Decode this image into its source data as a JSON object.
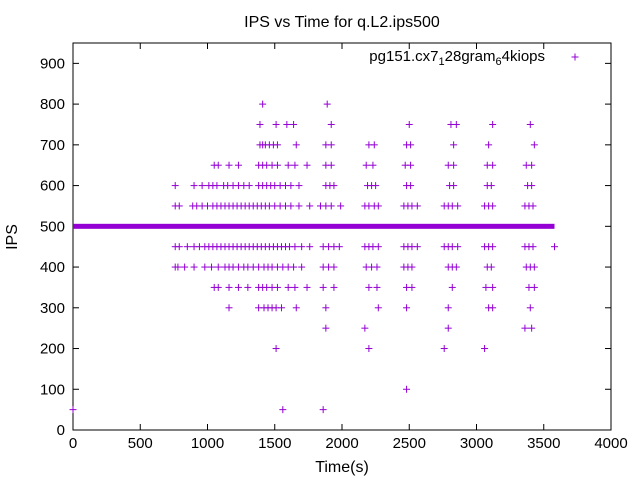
{
  "chart_data": {
    "type": "scatter",
    "title": "IPS vs Time for q.L2.ips500",
    "xlabel": "Time(s)",
    "ylabel": "IPS",
    "xlim": [
      0,
      4000
    ],
    "ylim": [
      0,
      950
    ],
    "xticks": [
      0,
      500,
      1000,
      1500,
      2000,
      2500,
      3000,
      3500,
      4000
    ],
    "yticks": [
      0,
      100,
      200,
      300,
      400,
      500,
      600,
      700,
      800,
      900
    ],
    "grid": false,
    "legend_position": "top-right",
    "marker": "+",
    "color": "#9400d3",
    "series": [
      {
        "name": "pg151.cx7",
        "name_sub": "1",
        "name_mid": "28gram",
        "name_sub2": "6",
        "name_tail": "4kiops",
        "baseline": {
          "y": 500,
          "x_start": 0,
          "x_end": 3580
        },
        "points": [
          [
            0,
            50
          ],
          [
            1560,
            50
          ],
          [
            1860,
            50
          ],
          [
            2480,
            100
          ],
          [
            1510,
            200
          ],
          [
            2200,
            200
          ],
          [
            2760,
            200
          ],
          [
            3060,
            200
          ],
          [
            1880,
            250
          ],
          [
            2170,
            250
          ],
          [
            2790,
            250
          ],
          [
            3360,
            250
          ],
          [
            3410,
            250
          ],
          [
            1160,
            300
          ],
          [
            1380,
            300
          ],
          [
            1420,
            300
          ],
          [
            1450,
            300
          ],
          [
            1480,
            300
          ],
          [
            1510,
            300
          ],
          [
            1550,
            300
          ],
          [
            1660,
            300
          ],
          [
            1880,
            300
          ],
          [
            2270,
            300
          ],
          [
            2480,
            300
          ],
          [
            2790,
            300
          ],
          [
            3090,
            300
          ],
          [
            3120,
            300
          ],
          [
            3400,
            300
          ],
          [
            1050,
            350
          ],
          [
            1080,
            350
          ],
          [
            1160,
            350
          ],
          [
            1230,
            350
          ],
          [
            1300,
            350
          ],
          [
            1380,
            350
          ],
          [
            1410,
            350
          ],
          [
            1440,
            350
          ],
          [
            1480,
            350
          ],
          [
            1520,
            350
          ],
          [
            1600,
            350
          ],
          [
            1650,
            350
          ],
          [
            1740,
            350
          ],
          [
            1860,
            350
          ],
          [
            1940,
            350
          ],
          [
            2200,
            350
          ],
          [
            2260,
            350
          ],
          [
            2480,
            350
          ],
          [
            2520,
            350
          ],
          [
            2820,
            350
          ],
          [
            3070,
            350
          ],
          [
            3120,
            350
          ],
          [
            3390,
            350
          ],
          [
            3430,
            350
          ],
          [
            760,
            400
          ],
          [
            780,
            400
          ],
          [
            830,
            400
          ],
          [
            900,
            400
          ],
          [
            980,
            400
          ],
          [
            1030,
            400
          ],
          [
            1080,
            400
          ],
          [
            1130,
            400
          ],
          [
            1160,
            400
          ],
          [
            1190,
            400
          ],
          [
            1230,
            400
          ],
          [
            1270,
            400
          ],
          [
            1300,
            400
          ],
          [
            1340,
            400
          ],
          [
            1380,
            400
          ],
          [
            1420,
            400
          ],
          [
            1450,
            400
          ],
          [
            1480,
            400
          ],
          [
            1520,
            400
          ],
          [
            1560,
            400
          ],
          [
            1600,
            400
          ],
          [
            1640,
            400
          ],
          [
            1700,
            400
          ],
          [
            1860,
            400
          ],
          [
            1900,
            400
          ],
          [
            1940,
            400
          ],
          [
            2180,
            400
          ],
          [
            2220,
            400
          ],
          [
            2260,
            400
          ],
          [
            2460,
            400
          ],
          [
            2490,
            400
          ],
          [
            2520,
            400
          ],
          [
            2790,
            400
          ],
          [
            2820,
            400
          ],
          [
            2850,
            400
          ],
          [
            3080,
            400
          ],
          [
            3110,
            400
          ],
          [
            3370,
            400
          ],
          [
            3400,
            400
          ],
          [
            3430,
            400
          ],
          [
            760,
            450
          ],
          [
            790,
            450
          ],
          [
            850,
            450
          ],
          [
            900,
            450
          ],
          [
            940,
            450
          ],
          [
            980,
            450
          ],
          [
            1010,
            450
          ],
          [
            1040,
            450
          ],
          [
            1070,
            450
          ],
          [
            1100,
            450
          ],
          [
            1130,
            450
          ],
          [
            1160,
            450
          ],
          [
            1190,
            450
          ],
          [
            1220,
            450
          ],
          [
            1250,
            450
          ],
          [
            1280,
            450
          ],
          [
            1310,
            450
          ],
          [
            1340,
            450
          ],
          [
            1370,
            450
          ],
          [
            1400,
            450
          ],
          [
            1430,
            450
          ],
          [
            1460,
            450
          ],
          [
            1490,
            450
          ],
          [
            1520,
            450
          ],
          [
            1550,
            450
          ],
          [
            1580,
            450
          ],
          [
            1610,
            450
          ],
          [
            1650,
            450
          ],
          [
            1700,
            450
          ],
          [
            1760,
            450
          ],
          [
            1860,
            450
          ],
          [
            1900,
            450
          ],
          [
            1940,
            450
          ],
          [
            1980,
            450
          ],
          [
            2170,
            450
          ],
          [
            2200,
            450
          ],
          [
            2230,
            450
          ],
          [
            2270,
            450
          ],
          [
            2460,
            450
          ],
          [
            2490,
            450
          ],
          [
            2520,
            450
          ],
          [
            2560,
            450
          ],
          [
            2760,
            450
          ],
          [
            2790,
            450
          ],
          [
            2820,
            450
          ],
          [
            2860,
            450
          ],
          [
            3060,
            450
          ],
          [
            3090,
            450
          ],
          [
            3120,
            450
          ],
          [
            3360,
            450
          ],
          [
            3390,
            450
          ],
          [
            3420,
            450
          ],
          [
            3580,
            450
          ],
          [
            760,
            550
          ],
          [
            790,
            550
          ],
          [
            890,
            550
          ],
          [
            920,
            550
          ],
          [
            960,
            550
          ],
          [
            1000,
            550
          ],
          [
            1040,
            550
          ],
          [
            1070,
            550
          ],
          [
            1100,
            550
          ],
          [
            1130,
            550
          ],
          [
            1160,
            550
          ],
          [
            1190,
            550
          ],
          [
            1220,
            550
          ],
          [
            1250,
            550
          ],
          [
            1280,
            550
          ],
          [
            1310,
            550
          ],
          [
            1340,
            550
          ],
          [
            1370,
            550
          ],
          [
            1400,
            550
          ],
          [
            1430,
            550
          ],
          [
            1460,
            550
          ],
          [
            1500,
            550
          ],
          [
            1540,
            550
          ],
          [
            1580,
            550
          ],
          [
            1620,
            550
          ],
          [
            1680,
            550
          ],
          [
            1760,
            550
          ],
          [
            1840,
            550
          ],
          [
            1880,
            550
          ],
          [
            1920,
            550
          ],
          [
            1990,
            550
          ],
          [
            2170,
            550
          ],
          [
            2200,
            550
          ],
          [
            2240,
            550
          ],
          [
            2270,
            550
          ],
          [
            2460,
            550
          ],
          [
            2490,
            550
          ],
          [
            2520,
            550
          ],
          [
            2560,
            550
          ],
          [
            2760,
            550
          ],
          [
            2790,
            550
          ],
          [
            2820,
            550
          ],
          [
            2860,
            550
          ],
          [
            3060,
            550
          ],
          [
            3090,
            550
          ],
          [
            3120,
            550
          ],
          [
            3360,
            550
          ],
          [
            3390,
            550
          ],
          [
            3420,
            550
          ],
          [
            760,
            600
          ],
          [
            900,
            600
          ],
          [
            960,
            600
          ],
          [
            1010,
            600
          ],
          [
            1040,
            600
          ],
          [
            1070,
            600
          ],
          [
            1120,
            600
          ],
          [
            1150,
            600
          ],
          [
            1190,
            600
          ],
          [
            1230,
            600
          ],
          [
            1270,
            600
          ],
          [
            1310,
            600
          ],
          [
            1380,
            600
          ],
          [
            1410,
            600
          ],
          [
            1440,
            600
          ],
          [
            1470,
            600
          ],
          [
            1500,
            600
          ],
          [
            1540,
            600
          ],
          [
            1580,
            600
          ],
          [
            1620,
            600
          ],
          [
            1680,
            600
          ],
          [
            1880,
            600
          ],
          [
            1910,
            600
          ],
          [
            1940,
            600
          ],
          [
            2190,
            600
          ],
          [
            2220,
            600
          ],
          [
            2250,
            600
          ],
          [
            2480,
            600
          ],
          [
            2510,
            600
          ],
          [
            2800,
            600
          ],
          [
            2830,
            600
          ],
          [
            3080,
            600
          ],
          [
            3110,
            600
          ],
          [
            3380,
            600
          ],
          [
            3410,
            600
          ],
          [
            1050,
            650
          ],
          [
            1080,
            650
          ],
          [
            1160,
            650
          ],
          [
            1230,
            650
          ],
          [
            1380,
            650
          ],
          [
            1410,
            650
          ],
          [
            1440,
            650
          ],
          [
            1480,
            650
          ],
          [
            1520,
            650
          ],
          [
            1600,
            650
          ],
          [
            1650,
            650
          ],
          [
            1740,
            650
          ],
          [
            1880,
            650
          ],
          [
            1920,
            650
          ],
          [
            2180,
            650
          ],
          [
            2230,
            650
          ],
          [
            2470,
            650
          ],
          [
            2510,
            650
          ],
          [
            2790,
            650
          ],
          [
            2830,
            650
          ],
          [
            3080,
            650
          ],
          [
            3120,
            650
          ],
          [
            3370,
            650
          ],
          [
            3410,
            650
          ],
          [
            1390,
            700
          ],
          [
            1410,
            700
          ],
          [
            1430,
            700
          ],
          [
            1460,
            700
          ],
          [
            1490,
            700
          ],
          [
            1520,
            700
          ],
          [
            1660,
            700
          ],
          [
            1880,
            700
          ],
          [
            1920,
            700
          ],
          [
            2200,
            700
          ],
          [
            2240,
            700
          ],
          [
            2480,
            700
          ],
          [
            2510,
            700
          ],
          [
            2830,
            700
          ],
          [
            3090,
            700
          ],
          [
            3430,
            700
          ],
          [
            1390,
            750
          ],
          [
            1510,
            750
          ],
          [
            1590,
            750
          ],
          [
            1640,
            750
          ],
          [
            1920,
            750
          ],
          [
            2500,
            750
          ],
          [
            2810,
            750
          ],
          [
            2850,
            750
          ],
          [
            3120,
            750
          ],
          [
            3400,
            750
          ],
          [
            1410,
            800
          ],
          [
            1890,
            800
          ]
        ]
      }
    ]
  }
}
